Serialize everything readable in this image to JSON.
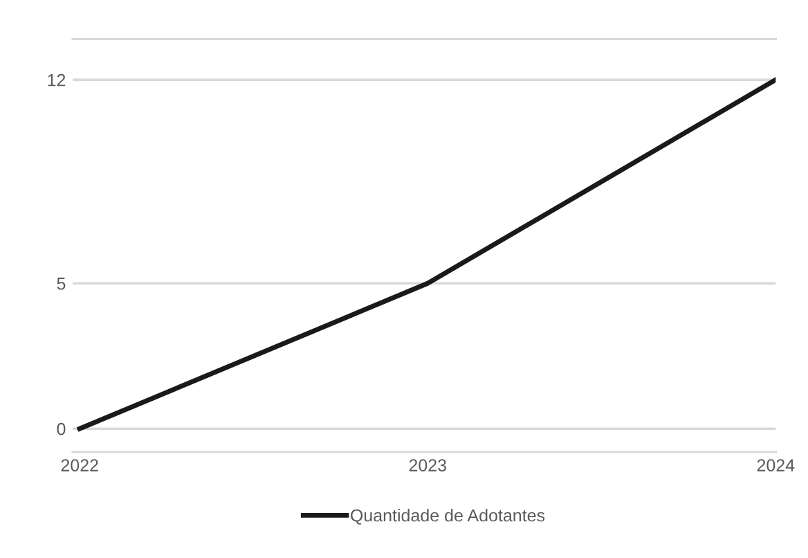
{
  "chart_data": {
    "type": "line",
    "categories": [
      "2022",
      "2023",
      "2024"
    ],
    "series": [
      {
        "name": "Quantidade de Adotantes",
        "color": "#1a1a1a",
        "values": [
          0,
          5,
          12
        ]
      }
    ],
    "ylim": [
      -0.8,
      13.4
    ],
    "yticks": [
      0,
      5,
      12
    ],
    "grid": "y",
    "legend": "bottom",
    "marker": "none",
    "line_style": "solid"
  }
}
